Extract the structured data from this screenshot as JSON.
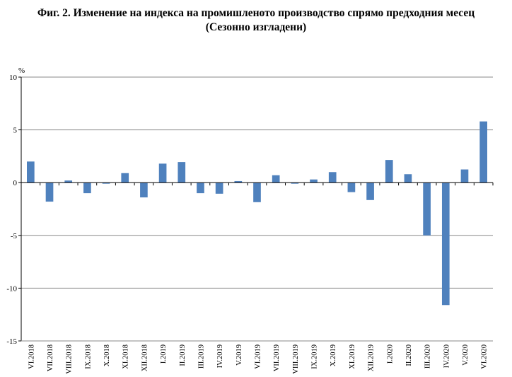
{
  "chart_data": {
    "type": "bar",
    "title": "Фиг. 2. Изменение на индекса на промишленото производство спрямо предходния месец",
    "subtitle": "(Сезонно изгладени)",
    "ylabel": "%",
    "xlabel": "",
    "ylim": [
      -15,
      10
    ],
    "yticks": [
      10,
      5,
      0,
      -5,
      -10,
      -15
    ],
    "grid": true,
    "legend": "none",
    "bar_color": "#4f81bd",
    "categories": [
      "VI.2018",
      "VII.2018",
      "VIII.2018",
      "IX.2018",
      "X.2018",
      "XI.2018",
      "XII.2018",
      "I.2019",
      "II.2019",
      "III.2019",
      "IV.2019",
      "V.2019",
      "VI.2019",
      "VII.2019",
      "VIII.2019",
      "IX.2019",
      "X.2019",
      "XI.2019",
      "XII.2019",
      "I.2020",
      "II.2020",
      "III.2020",
      "IV.2020",
      "V.2020",
      "VI.2020"
    ],
    "values": [
      2.0,
      -1.8,
      0.2,
      -1.0,
      -0.1,
      0.9,
      -1.4,
      1.8,
      1.95,
      -1.0,
      -1.05,
      0.15,
      -1.85,
      0.7,
      -0.1,
      0.3,
      1.0,
      -0.9,
      -1.65,
      2.15,
      0.8,
      -5.0,
      -11.6,
      1.25,
      5.8
    ]
  }
}
